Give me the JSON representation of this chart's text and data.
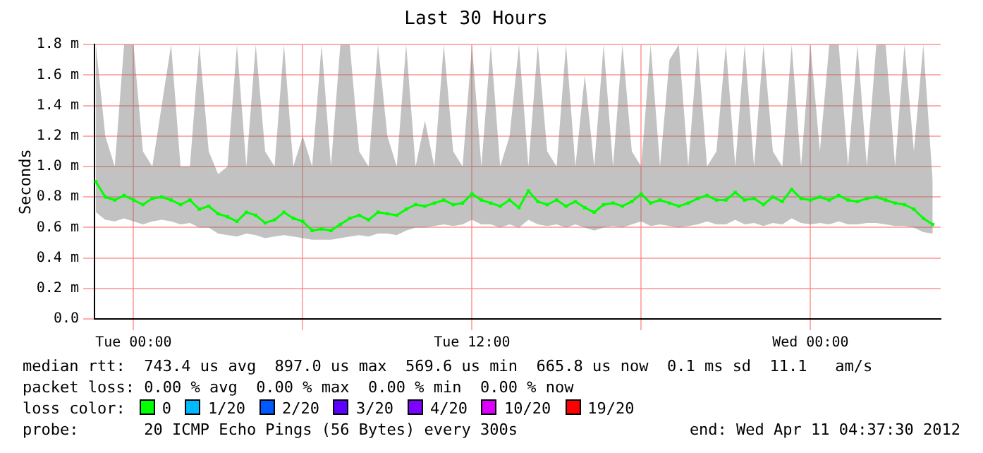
{
  "chart_data": {
    "type": "line",
    "title": "Last 30 Hours",
    "ylabel": "Seconds",
    "xlim": [
      "2012-04-09T22:37",
      "2012-04-11T04:37"
    ],
    "xticks": [
      {
        "value": "2012-04-10T00:00",
        "label": "Tue 00:00"
      },
      {
        "value": "2012-04-10T06:00",
        "label": null
      },
      {
        "value": "2012-04-10T12:00",
        "label": "Tue 12:00"
      },
      {
        "value": "2012-04-10T18:00",
        "label": null
      },
      {
        "value": "2012-04-11T00:00",
        "label": "Wed 00:00"
      }
    ],
    "ylim": [
      0,
      1.8
    ],
    "yticks": [
      {
        "value": 0,
        "label": "0.0"
      },
      {
        "value": 0.2,
        "label": "0.2 m"
      },
      {
        "value": 0.4,
        "label": "0.4 m"
      },
      {
        "value": 0.6,
        "label": "0.6 m"
      },
      {
        "value": 0.8,
        "label": "0.8 m"
      },
      {
        "value": 1.0,
        "label": "1.0 m"
      },
      {
        "value": 1.2,
        "label": "1.2 m"
      },
      {
        "value": 1.4,
        "label": "1.4 m"
      },
      {
        "value": 1.6,
        "label": "1.6 m"
      },
      {
        "value": 1.8,
        "label": "1.8 m"
      }
    ],
    "grid": true,
    "legend": false,
    "marker": "square",
    "line_style": "solid",
    "x": [
      "2012-04-09T22:40",
      "2012-04-09T23:00",
      "2012-04-09T23:20",
      "2012-04-09T23:40",
      "2012-04-10T00:00",
      "2012-04-10T00:20",
      "2012-04-10T00:40",
      "2012-04-10T01:00",
      "2012-04-10T01:20",
      "2012-04-10T01:40",
      "2012-04-10T02:00",
      "2012-04-10T02:20",
      "2012-04-10T02:40",
      "2012-04-10T03:00",
      "2012-04-10T03:20",
      "2012-04-10T03:40",
      "2012-04-10T04:00",
      "2012-04-10T04:20",
      "2012-04-10T04:40",
      "2012-04-10T05:00",
      "2012-04-10T05:20",
      "2012-04-10T05:40",
      "2012-04-10T06:00",
      "2012-04-10T06:20",
      "2012-04-10T06:40",
      "2012-04-10T07:00",
      "2012-04-10T07:20",
      "2012-04-10T07:40",
      "2012-04-10T08:00",
      "2012-04-10T08:20",
      "2012-04-10T08:40",
      "2012-04-10T09:00",
      "2012-04-10T09:20",
      "2012-04-10T09:40",
      "2012-04-10T10:00",
      "2012-04-10T10:20",
      "2012-04-10T10:40",
      "2012-04-10T11:00",
      "2012-04-10T11:20",
      "2012-04-10T11:40",
      "2012-04-10T12:00",
      "2012-04-10T12:20",
      "2012-04-10T12:40",
      "2012-04-10T13:00",
      "2012-04-10T13:20",
      "2012-04-10T13:40",
      "2012-04-10T14:00",
      "2012-04-10T14:20",
      "2012-04-10T14:40",
      "2012-04-10T15:00",
      "2012-04-10T15:20",
      "2012-04-10T15:40",
      "2012-04-10T16:00",
      "2012-04-10T16:20",
      "2012-04-10T16:40",
      "2012-04-10T17:00",
      "2012-04-10T17:20",
      "2012-04-10T17:40",
      "2012-04-10T18:00",
      "2012-04-10T18:20",
      "2012-04-10T18:40",
      "2012-04-10T19:00",
      "2012-04-10T19:20",
      "2012-04-10T19:40",
      "2012-04-10T20:00",
      "2012-04-10T20:20",
      "2012-04-10T20:40",
      "2012-04-10T21:00",
      "2012-04-10T21:20",
      "2012-04-10T21:40",
      "2012-04-10T22:00",
      "2012-04-10T22:20",
      "2012-04-10T22:40",
      "2012-04-10T23:00",
      "2012-04-10T23:20",
      "2012-04-10T23:40",
      "2012-04-11T00:00",
      "2012-04-11T00:20",
      "2012-04-11T00:40",
      "2012-04-11T01:00",
      "2012-04-11T01:20",
      "2012-04-11T01:40",
      "2012-04-11T02:00",
      "2012-04-11T02:20",
      "2012-04-11T02:40",
      "2012-04-11T03:00",
      "2012-04-11T03:20",
      "2012-04-11T03:40",
      "2012-04-11T04:00",
      "2012-04-11T04:20"
    ],
    "series": [
      {
        "color": "#00ff00",
        "values": [
          0.9,
          0.8,
          0.78,
          0.81,
          0.78,
          0.75,
          0.79,
          0.8,
          0.78,
          0.75,
          0.78,
          0.72,
          0.74,
          0.69,
          0.67,
          0.64,
          0.7,
          0.68,
          0.63,
          0.65,
          0.7,
          0.66,
          0.64,
          0.58,
          0.59,
          0.58,
          0.62,
          0.66,
          0.68,
          0.65,
          0.7,
          0.69,
          0.68,
          0.72,
          0.75,
          0.74,
          0.76,
          0.78,
          0.75,
          0.76,
          0.82,
          0.78,
          0.76,
          0.74,
          0.78,
          0.73,
          0.84,
          0.77,
          0.75,
          0.78,
          0.74,
          0.77,
          0.73,
          0.7,
          0.75,
          0.76,
          0.74,
          0.77,
          0.82,
          0.76,
          0.78,
          0.76,
          0.74,
          0.76,
          0.79,
          0.81,
          0.78,
          0.78,
          0.83,
          0.78,
          0.79,
          0.75,
          0.8,
          0.77,
          0.85,
          0.79,
          0.78,
          0.8,
          0.78,
          0.81,
          0.78,
          0.77,
          0.79,
          0.8,
          0.78,
          0.76,
          0.75,
          0.72,
          0.66,
          0.62
        ],
        "lower": [
          0.7,
          0.65,
          0.64,
          0.66,
          0.64,
          0.62,
          0.64,
          0.65,
          0.64,
          0.62,
          0.63,
          0.6,
          0.6,
          0.56,
          0.55,
          0.54,
          0.56,
          0.55,
          0.53,
          0.54,
          0.55,
          0.54,
          0.53,
          0.52,
          0.52,
          0.52,
          0.53,
          0.54,
          0.55,
          0.54,
          0.56,
          0.56,
          0.55,
          0.58,
          0.6,
          0.6,
          0.61,
          0.62,
          0.61,
          0.62,
          0.65,
          0.62,
          0.62,
          0.6,
          0.62,
          0.6,
          0.65,
          0.62,
          0.61,
          0.62,
          0.6,
          0.62,
          0.6,
          0.58,
          0.6,
          0.61,
          0.6,
          0.62,
          0.64,
          0.61,
          0.62,
          0.61,
          0.6,
          0.61,
          0.62,
          0.64,
          0.62,
          0.62,
          0.65,
          0.62,
          0.63,
          0.61,
          0.63,
          0.62,
          0.66,
          0.63,
          0.62,
          0.63,
          0.62,
          0.64,
          0.62,
          0.62,
          0.63,
          0.63,
          0.62,
          0.61,
          0.61,
          0.6,
          0.57,
          0.56
        ],
        "upper": [
          1.8,
          1.2,
          1.0,
          1.8,
          1.8,
          1.1,
          1.0,
          1.4,
          1.8,
          1.0,
          1.0,
          1.8,
          1.1,
          0.95,
          1.0,
          1.8,
          1.0,
          1.8,
          1.1,
          1.0,
          1.8,
          1.0,
          1.2,
          1.0,
          1.8,
          1.0,
          1.8,
          1.8,
          1.1,
          1.0,
          1.8,
          1.2,
          1.0,
          1.8,
          1.0,
          1.3,
          1.0,
          1.8,
          1.1,
          1.0,
          1.8,
          1.0,
          1.8,
          1.0,
          1.2,
          1.8,
          1.0,
          1.8,
          1.1,
          1.0,
          1.8,
          1.0,
          1.6,
          1.0,
          1.8,
          1.0,
          1.8,
          1.1,
          1.0,
          1.8,
          1.0,
          1.7,
          1.8,
          1.0,
          1.8,
          1.0,
          1.1,
          1.8,
          1.0,
          1.8,
          1.0,
          1.8,
          1.1,
          1.0,
          1.8,
          1.0,
          1.8,
          1.1,
          1.8,
          1.8,
          1.0,
          1.8,
          1.0,
          1.8,
          1.8,
          1.0,
          1.8,
          1.1,
          1.8,
          0.9
        ]
      }
    ],
    "annotations": [
      "median rtt:  743.4 us avg  897.0 us max  569.6 us min  665.8 us now  0.1 ms sd  11.1   am/s",
      "packet loss: 0.00 % avg  0.00 % max  0.00 % min  0.00 % now",
      "loss color:",
      "0",
      "1/20",
      "2/20",
      "3/20",
      "4/20",
      "10/20",
      "19/20",
      "probe:       20 ICMP Echo Pings (56 Bytes) every 300s",
      "end: Wed Apr 11 04:37:30 2012"
    ]
  }
}
